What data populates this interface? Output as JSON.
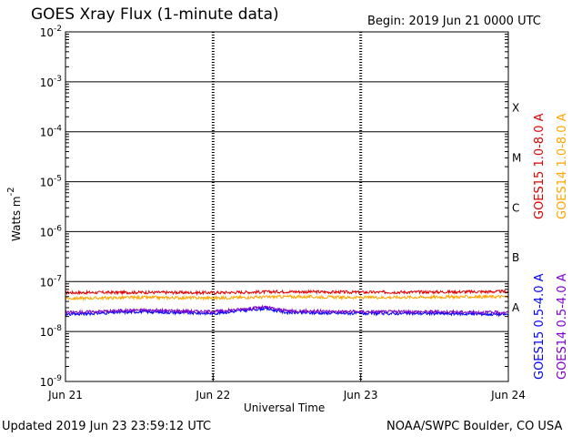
{
  "header": {
    "title": "GOES Xray Flux (1-minute data)",
    "begin": "Begin:  2019 Jun 21 0000 UTC"
  },
  "footer": {
    "updated": "Updated 2019 Jun 23 23:59:12 UTC",
    "credit": "NOAA/SWPC Boulder, CO USA"
  },
  "chart_data": {
    "type": "line",
    "title": "GOES Xray Flux (1-minute data)",
    "xlabel": "Universal Time",
    "ylabel": "Watts m",
    "ylabel_superscript": "-2",
    "yscale": "log",
    "ylim": [
      1e-09,
      0.01
    ],
    "y_ticks": [
      {
        "base": "10",
        "exp": "-2",
        "value": 0.01
      },
      {
        "base": "10",
        "exp": "-3",
        "value": 0.001
      },
      {
        "base": "10",
        "exp": "-4",
        "value": 0.0001
      },
      {
        "base": "10",
        "exp": "-5",
        "value": 1e-05
      },
      {
        "base": "10",
        "exp": "-6",
        "value": 1e-06
      },
      {
        "base": "10",
        "exp": "-7",
        "value": 1e-07
      },
      {
        "base": "10",
        "exp": "-8",
        "value": 1e-08
      },
      {
        "base": "10",
        "exp": "-9",
        "value": 1e-09
      }
    ],
    "x_ticks": [
      "Jun 21",
      "Jun 22",
      "Jun 23",
      "Jun 24"
    ],
    "flare_classes": [
      {
        "label": "X",
        "value": 0.0003
      },
      {
        "label": "M",
        "value": 3e-05
      },
      {
        "label": "C",
        "value": 3e-06
      },
      {
        "label": "B",
        "value": 3e-07
      },
      {
        "label": "A",
        "value": 3e-08
      }
    ],
    "grid": true,
    "legend_position": "right",
    "series": [
      {
        "name": "GOES15 1.0-8.0 A",
        "color": "#e00000",
        "x": [
          0,
          0.5,
          1,
          1.5,
          2,
          2.5,
          3
        ],
        "y": [
          6e-08,
          6.1e-08,
          6e-08,
          6.3e-08,
          6.1e-08,
          6.2e-08,
          6.3e-08
        ]
      },
      {
        "name": "GOES14 1.0-8.0 A",
        "color": "#ffa500",
        "x": [
          0,
          0.5,
          1,
          1.5,
          2,
          2.5,
          3
        ],
        "y": [
          4.6e-08,
          4.8e-08,
          4.7e-08,
          5e-08,
          4.8e-08,
          4.9e-08,
          5e-08
        ]
      },
      {
        "name": "GOES15 0.5-4.0 A",
        "color": "#0000ff",
        "x": [
          0,
          0.5,
          1,
          1.35,
          1.5,
          2,
          2.5,
          3
        ],
        "y": [
          2.2e-08,
          2.5e-08,
          2.3e-08,
          2.9e-08,
          2.4e-08,
          2.3e-08,
          2.3e-08,
          2.2e-08
        ]
      },
      {
        "name": "GOES14 0.5-4.0 A",
        "color": "#7d00c8",
        "x": [
          0,
          0.5,
          1,
          1.35,
          1.5,
          2,
          2.5,
          3
        ],
        "y": [
          2.4e-08,
          2.7e-08,
          2.5e-08,
          3.1e-08,
          2.6e-08,
          2.5e-08,
          2.5e-08,
          2.4e-08
        ]
      }
    ]
  }
}
